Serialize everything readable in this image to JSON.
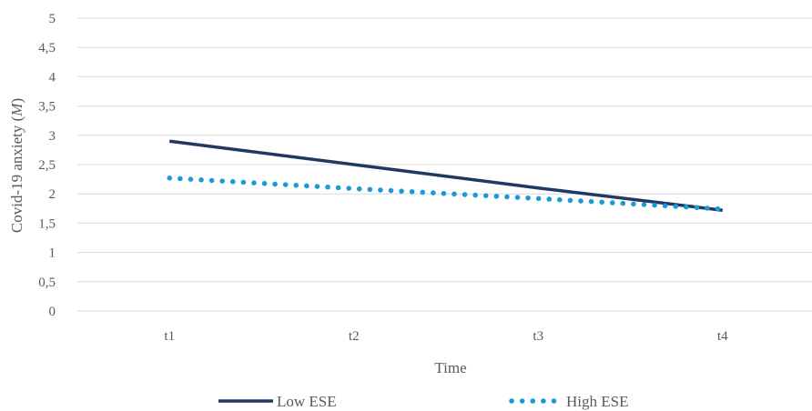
{
  "chart_data": {
    "type": "line",
    "title": "",
    "xlabel": "Time",
    "ylabel_prefix": "Covid-19 anxiety (",
    "ylabel_italic": "M",
    "ylabel_suffix": ")",
    "categories": [
      "t1",
      "t2",
      "t3",
      "t4"
    ],
    "ylim": [
      0,
      5
    ],
    "yticks": [
      "0",
      "0,5",
      "1",
      "1,5",
      "2",
      "2,5",
      "3",
      "3,5",
      "4",
      "4,5",
      "5"
    ],
    "grid": true,
    "legend_position": "bottom",
    "series": [
      {
        "name": "Low ESE",
        "values": [
          2.9,
          2.5,
          2.1,
          1.72
        ],
        "color": "#1f3864",
        "style": "solid"
      },
      {
        "name": "High ESE",
        "values": [
          2.27,
          2.09,
          1.92,
          1.74
        ],
        "color": "#1b9ad6",
        "style": "dotted"
      }
    ]
  }
}
